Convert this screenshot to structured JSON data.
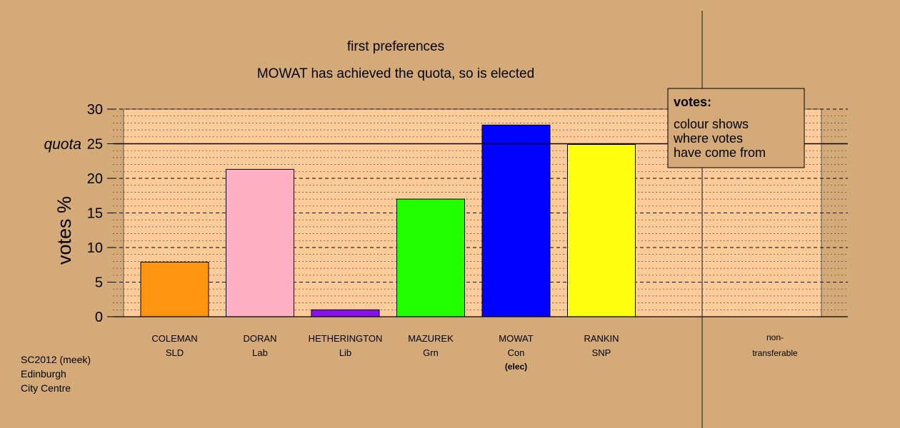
{
  "colors": {
    "background": "#d4aa78",
    "plot_area": "#ffcc99",
    "grid": "#000000"
  },
  "chart_data": {
    "type": "bar",
    "title": "first preferences",
    "subtitle": "MOWAT has achieved the quota, so is elected",
    "ylabel": "votes %",
    "ylim": [
      0,
      30
    ],
    "yticks": [
      0,
      5,
      10,
      15,
      20,
      25,
      30
    ],
    "quota": 25,
    "quota_label": "quota",
    "grid": true,
    "categories": [
      {
        "name": "COLEMAN",
        "party": "SLD",
        "note": ""
      },
      {
        "name": "DORAN",
        "party": "Lab",
        "note": ""
      },
      {
        "name": "HETHERINGTON",
        "party": "Lib",
        "note": ""
      },
      {
        "name": "MAZUREK",
        "party": "Grn",
        "note": ""
      },
      {
        "name": "MOWAT",
        "party": "Con",
        "note": "(elec)"
      },
      {
        "name": "RANKIN",
        "party": "SNP",
        "note": ""
      }
    ],
    "values": [
      7.9,
      21.3,
      1.0,
      17.0,
      27.7,
      24.9
    ],
    "bar_colors": [
      "#ff9411",
      "#ffb0c5",
      "#8811ee",
      "#22ff00",
      "#0000ff",
      "#ffff11"
    ],
    "nontransferable": {
      "label_line1": "non-",
      "label_line2": "transferable",
      "value": 0
    },
    "legend": {
      "position": "top-right",
      "title": "votes:",
      "lines": [
        "colour shows",
        "where votes",
        "have come from"
      ]
    }
  },
  "footer": {
    "line1": "SC2012 (meek)",
    "line2": "Edinburgh",
    "line3": "City Centre"
  }
}
